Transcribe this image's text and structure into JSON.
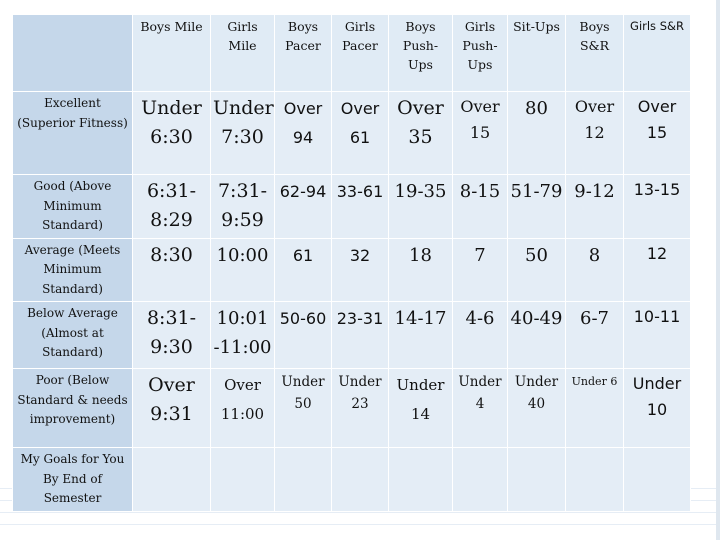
{
  "table": {
    "headers": [
      "Boys Mile",
      "Girls Mile",
      "Boys Pacer",
      "Girls Pacer",
      "Boys Push-Ups",
      "Girls Push-Ups",
      "Sit-Ups",
      "Boys S&R",
      "Girls S&R"
    ],
    "rows": [
      {
        "label": "Excellent (Superior Fitness)",
        "cells": [
          "Under 6:30",
          "Under 7:30",
          "Over 94",
          "Over 61",
          "Over 35",
          "Over 15",
          "80",
          "Over 12",
          "Over 15"
        ]
      },
      {
        "label": "Good (Above Minimum Standard)",
        "cells": [
          "6:31-8:29",
          "7:31-9:59",
          "62-94",
          "33-61",
          "19-35",
          "8-15",
          "51-79",
          "9-12",
          "13-15"
        ]
      },
      {
        "label": "Average (Meets Minimum Standard)",
        "cells": [
          "8:30",
          "10:00",
          "61",
          "32",
          "18",
          "7",
          "50",
          "8",
          "12"
        ]
      },
      {
        "label": "Below Average (Almost at Standard)",
        "cells": [
          "8:31-9:30",
          "10:01 -11:00",
          "50-60",
          "23-31",
          "14-17",
          "4-6",
          "40-49",
          "6-7",
          "10-11"
        ]
      },
      {
        "label": "Poor (Below Standard & needs improvement)",
        "cells": [
          "Over 9:31",
          "Over 11:00",
          "Under 50",
          "Under 23",
          "Under 14",
          "Under 4",
          "Under 40",
          "Under 6",
          "Under 10"
        ]
      },
      {
        "label": "My Goals for You By End of Semester",
        "cells": [
          "",
          "",
          "",
          "",
          "",
          "",
          "",
          "",
          ""
        ]
      }
    ]
  }
}
